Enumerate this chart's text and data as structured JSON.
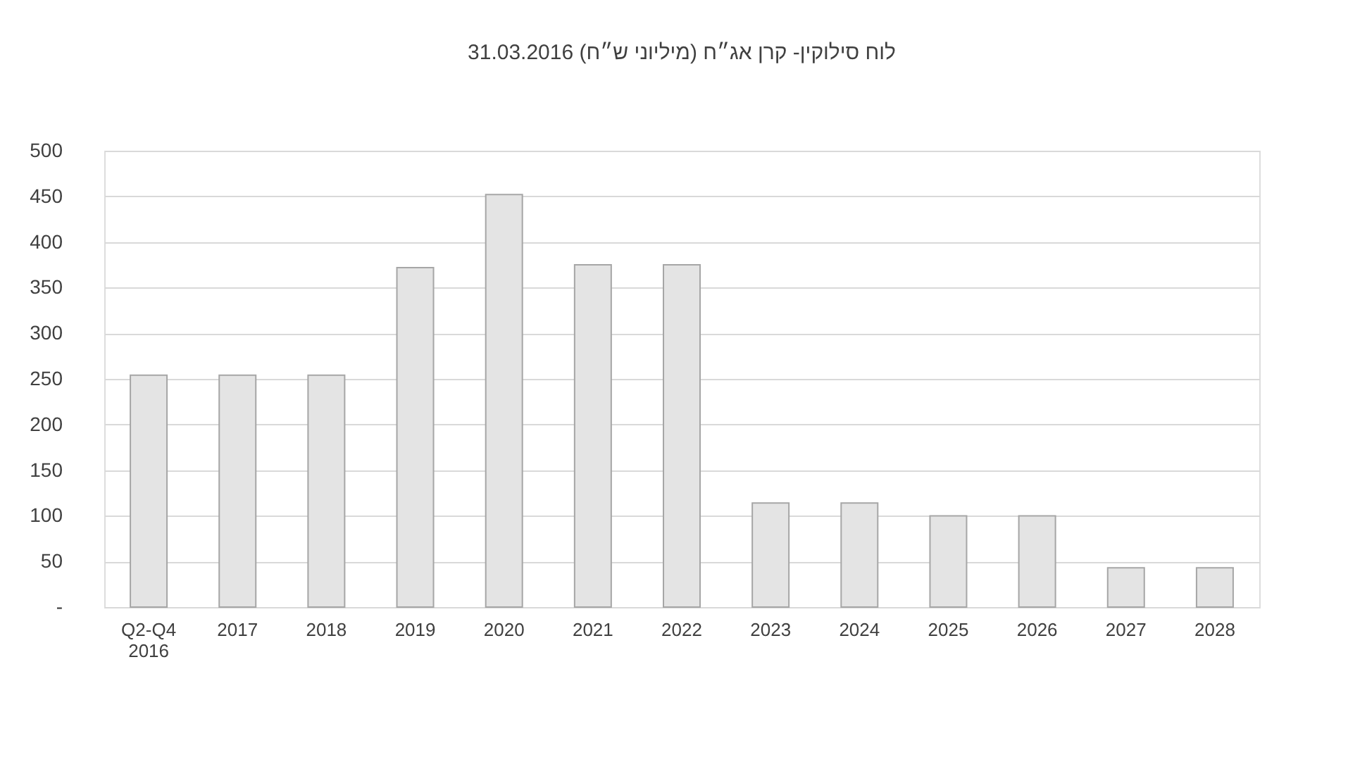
{
  "chart_data": {
    "type": "bar",
    "title": "לוח סילוקין- קרן אג״ח (מיליוני ש״ח) 31.03.2016",
    "categories": [
      "Q2-Q4 2016",
      "2017",
      "2018",
      "2019",
      "2020",
      "2021",
      "2022",
      "2023",
      "2024",
      "2025",
      "2026",
      "2027",
      "2028"
    ],
    "values": [
      254,
      254,
      254,
      372,
      452,
      375,
      375,
      114,
      114,
      100,
      100,
      43,
      43
    ],
    "color": "#e4e4e4",
    "ylim": [
      0,
      500
    ],
    "yticks": [
      {
        "value": 0,
        "label": "-"
      },
      50,
      100,
      150,
      200,
      250,
      300,
      350,
      400,
      450,
      500
    ],
    "grid": "y"
  }
}
